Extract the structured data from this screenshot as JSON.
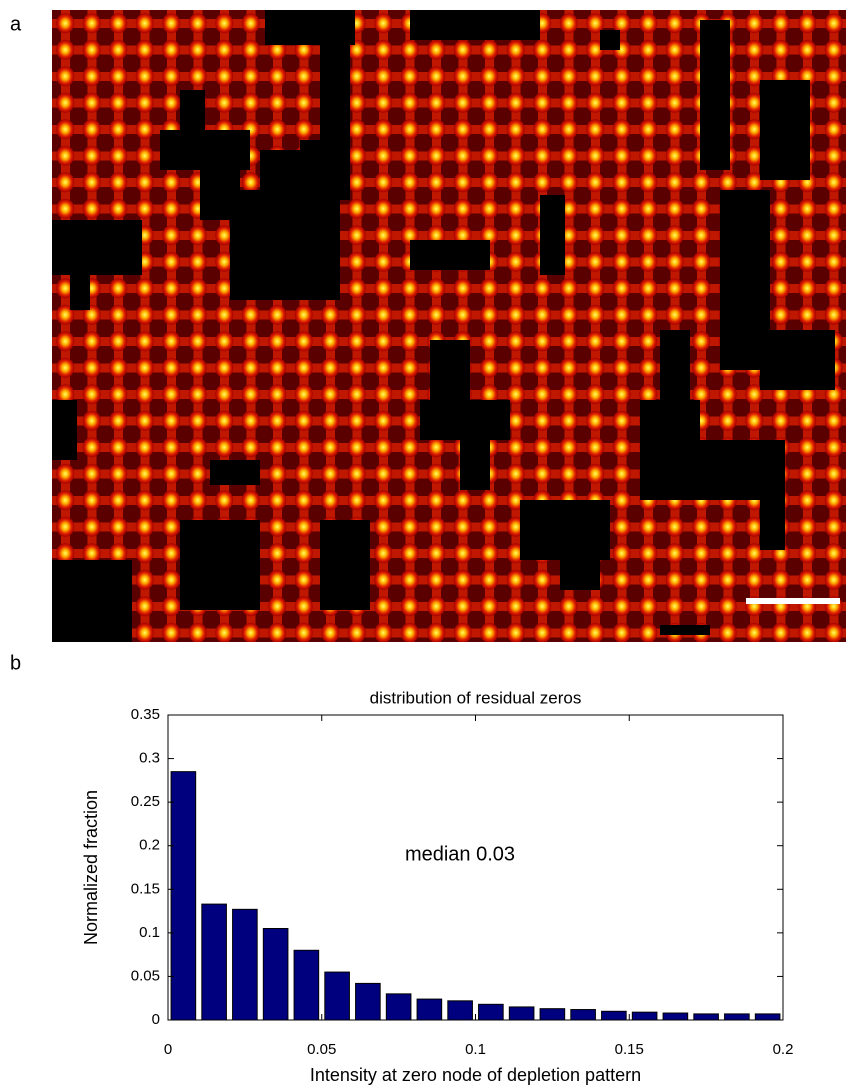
{
  "panel_labels": [
    "a",
    "b"
  ],
  "chart_data": {
    "type": "histogram",
    "title": "distribution of residual zeros",
    "xlabel": "Intensity at zero node of depletion pattern",
    "ylabel": "Normalized fraction",
    "annotation": "median 0.03",
    "bins": [
      0,
      0.01,
      0.02,
      0.03,
      0.04,
      0.05,
      0.06,
      0.07,
      0.08,
      0.09,
      0.1,
      0.11,
      0.12,
      0.13,
      0.14,
      0.15,
      0.16,
      0.17,
      0.18,
      0.19,
      0.2
    ],
    "values": [
      0.285,
      0.133,
      0.127,
      0.105,
      0.08,
      0.055,
      0.042,
      0.03,
      0.024,
      0.022,
      0.018,
      0.015,
      0.013,
      0.012,
      0.01,
      0.009,
      0.008,
      0.007,
      0.007,
      0.007
    ],
    "color": "#00007f",
    "xlim": [
      0,
      0.2
    ],
    "ylim": [
      0,
      0.35
    ],
    "xticks": [
      0,
      0.05,
      0.1,
      0.15,
      0.2
    ],
    "yticks": [
      0,
      0.05,
      0.1,
      0.15,
      0.2,
      0.25,
      0.3,
      0.35
    ],
    "grid": false
  }
}
